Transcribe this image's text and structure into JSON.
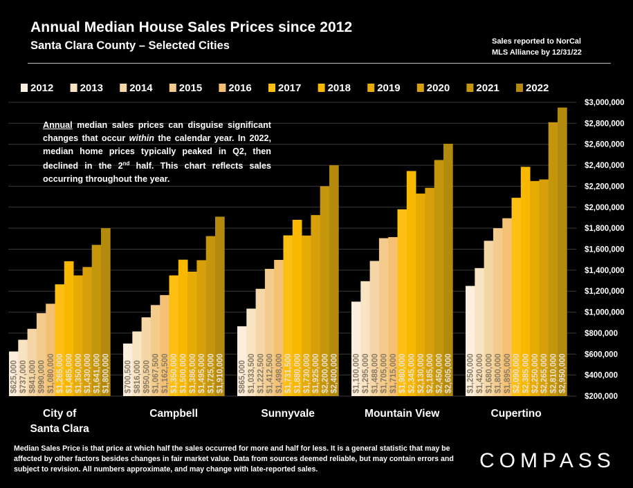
{
  "header": {
    "title": "Annual Median House Sales Prices since 2012",
    "subtitle": "Santa Clara County – Selected Cities",
    "source_line1": "Sales reported to NorCal",
    "source_line2": "MLS Alliance by 12/31/22"
  },
  "note": {
    "lead": "Annual",
    "text_a": " median sales prices can disguise significant changes that occur ",
    "emph": "within",
    "text_b": " the calendar year. In 2022, median home prices typically peaked in Q2, then declined in the 2",
    "sup": "nd",
    "text_c": " half. This chart reflects sales occurring throughout the year."
  },
  "footer": {
    "footnote": "Median Sales Price is that price at which half the sales occurred for more and half for less. It is a general statistic that may be affected by other factors besides changes in fair market value. Data from sources deemed reliable, but may contain errors and subject to revision.  All numbers approximate, and may change with late-reported sales.",
    "logo": "COMPASS"
  },
  "chart_data": {
    "type": "bar",
    "categories": [
      "City of Santa Clara",
      "Campbell",
      "Sunnyvale",
      "Mountain View",
      "Cupertino"
    ],
    "category_lines": [
      [
        "City of",
        "Santa Clara"
      ],
      [
        "Campbell"
      ],
      [
        "Sunnyvale"
      ],
      [
        "Mountain View"
      ],
      [
        "Cupertino"
      ]
    ],
    "series": [
      {
        "name": "2012",
        "color": "#fbeedd",
        "values": [
          625000,
          700500,
          865000,
          1100000,
          1250000
        ],
        "labels": [
          "$625,000",
          "$700,500",
          "$865,000",
          "$1,100,000",
          "$1,250,000"
        ]
      },
      {
        "name": "2013",
        "color": "#f8e3c3",
        "values": [
          737000,
          816000,
          1033500,
          1295000,
          1420000
        ],
        "labels": [
          "$737,000",
          "$816,000",
          "$1,033,500",
          "$1,295,000",
          "$1,420,000"
        ]
      },
      {
        "name": "2014",
        "color": "#f5d6a6",
        "values": [
          841000,
          950500,
          1222500,
          1488000,
          1680000
        ],
        "labels": [
          "$841,000",
          "$950,500",
          "$1,222,500",
          "$1,488,000",
          "$1,680,000"
        ]
      },
      {
        "name": "2015",
        "color": "#f3cb8c",
        "values": [
          990000,
          1067500,
          1412500,
          1705000,
          1800000
        ],
        "labels": [
          "$990,000",
          "$1,067,500",
          "$1,412,500",
          "$1,705,000",
          "$1,800,000"
        ]
      },
      {
        "name": "2016",
        "color": "#f4c174",
        "values": [
          1080000,
          1162500,
          1498000,
          1715000,
          1895000
        ],
        "labels": [
          "$1,080,000",
          "$1,162,500",
          "$1,498,000",
          "$1,715,000",
          "$1,895,000"
        ]
      },
      {
        "name": "2017",
        "color": "#fdbf12",
        "values": [
          1265000,
          1350000,
          1731500,
          1980000,
          2090000
        ],
        "labels": [
          "$1,265,000",
          "$1,350,000",
          "$1,731,500",
          "$1,980,000",
          "$2,090,000"
        ]
      },
      {
        "name": "2018",
        "color": "#f8b800",
        "values": [
          1485000,
          1500000,
          1880000,
          2345000,
          2385000
        ],
        "labels": [
          "$1,485,000",
          "$1,500,000",
          "$1,880,000",
          "$2,345,000",
          "$2,385,000"
        ]
      },
      {
        "name": "2019",
        "color": "#e7ab05",
        "values": [
          1350000,
          1386000,
          1730000,
          2130000,
          2250000
        ],
        "labels": [
          "$1,350,000",
          "$1,386,000",
          "$1,730,000",
          "$2,130,000",
          "$2,250,000"
        ]
      },
      {
        "name": "2020",
        "color": "#d7a00a",
        "values": [
          1430000,
          1495000,
          1925000,
          2185000,
          2265000
        ],
        "labels": [
          "$1,430,000",
          "$1,495,000",
          "$1,925,000",
          "$2,185,000",
          "$2,265,000"
        ]
      },
      {
        "name": "2021",
        "color": "#c4960c",
        "values": [
          1641000,
          1725000,
          2200000,
          2450000,
          2810000
        ],
        "labels": [
          "$1,641,000",
          "$1,725,000",
          "$2,200,000",
          "$2,450,000",
          "$2,810,000"
        ]
      },
      {
        "name": "2022",
        "color": "#b3890e",
        "values": [
          1800000,
          1910000,
          2400000,
          2605000,
          2950000
        ],
        "labels": [
          "$1,800,000",
          "$1,910,000",
          "$2,400,000",
          "$2,605,000",
          "$2,950,000"
        ]
      }
    ],
    "ylim": [
      200000,
      3000000
    ],
    "yticks": [
      200000,
      400000,
      600000,
      800000,
      1000000,
      1200000,
      1400000,
      1600000,
      1800000,
      2000000,
      2200000,
      2400000,
      2600000,
      2800000,
      3000000
    ],
    "ytick_labels": [
      "$200,000",
      "$400,000",
      "$600,000",
      "$800,000",
      "$1,000,000",
      "$1,200,000",
      "$1,400,000",
      "$1,600,000",
      "$1,800,000",
      "$2,000,000",
      "$2,200,000",
      "$2,400,000",
      "$2,600,000",
      "$2,800,000",
      "$3,000,000"
    ],
    "grid": true,
    "legend_position": "top",
    "axis_position": "right"
  }
}
